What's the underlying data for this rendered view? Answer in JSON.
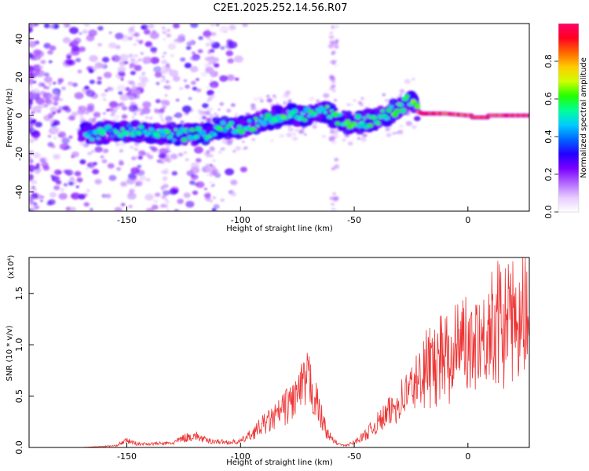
{
  "chart_data": [
    {
      "type": "heatmap",
      "title": "C2E1.2025.252.14.56.R07",
      "xlabel": "Height of straight line (km)",
      "ylabel": "Frequency (Hz)",
      "xlim": [
        -193,
        27
      ],
      "ylim": [
        -50,
        48
      ],
      "xticks": [
        -150,
        -100,
        -50,
        0
      ],
      "yticks": [
        -40,
        -20,
        0,
        20,
        40
      ],
      "colorbar": {
        "label": "Normalized spectral amplitude",
        "range": [
          0,
          1
        ],
        "ticks": [
          "0.0",
          "0.2",
          "0.4",
          "0.6",
          "0.8"
        ],
        "colors": [
          "#ffffff",
          "#e6ccff",
          "#b266ff",
          "#7a00ff",
          "#2200ff",
          "#0066ff",
          "#00ccff",
          "#00ff99",
          "#22ff00",
          "#ccff00",
          "#ffcc00",
          "#ff6600",
          "#ff0022",
          "#ff0066"
        ]
      },
      "ridge": {
        "x": [
          -170,
          -160,
          -150,
          -140,
          -130,
          -120,
          -115,
          -110,
          -100,
          -90,
          -80,
          -70,
          -62,
          -58,
          -55,
          -50,
          -40,
          -30,
          -25,
          -22,
          -20,
          -10,
          0,
          10,
          20,
          27
        ],
        "y": [
          -10,
          -9,
          -8,
          -9,
          -10,
          -10,
          -10,
          -7,
          -6,
          -3,
          1,
          0,
          2,
          -2,
          -3,
          -4,
          -2,
          4,
          9,
          2,
          1,
          1,
          0,
          0,
          0,
          0
        ]
      }
    },
    {
      "type": "line",
      "xlabel": "Height of straight line (km)",
      "ylabel": "SNR (10 * v/v)",
      "y_multiplier": "(x10⁴)",
      "xlim": [
        -193,
        27
      ],
      "ylim": [
        0,
        1.85
      ],
      "xticks": [
        -150,
        -100,
        -50,
        0
      ],
      "yticks": [
        "0.0",
        "0.5",
        "1.0",
        "1.5"
      ],
      "ytick_values": [
        0,
        0.5,
        1.0,
        1.5
      ],
      "color": "#ee3333",
      "envelope": {
        "x": [
          -193,
          -170,
          -155,
          -150,
          -145,
          -130,
          -125,
          -120,
          -115,
          -105,
          -100,
          -95,
          -90,
          -85,
          -80,
          -75,
          -72,
          -70,
          -68,
          -65,
          -62,
          -60,
          -57,
          -54,
          -50,
          -45,
          -40,
          -35,
          -30,
          -25,
          -22,
          -20,
          -15,
          -10,
          -5,
          0,
          5,
          10,
          15,
          20,
          25,
          27
        ],
        "y": [
          0.0,
          0.0,
          0.02,
          0.08,
          0.04,
          0.05,
          0.11,
          0.14,
          0.08,
          0.06,
          0.07,
          0.16,
          0.27,
          0.35,
          0.48,
          0.62,
          0.72,
          0.8,
          0.65,
          0.4,
          0.18,
          0.1,
          0.04,
          0.02,
          0.06,
          0.15,
          0.28,
          0.4,
          0.55,
          0.7,
          0.8,
          0.9,
          1.0,
          1.12,
          1.22,
          1.25,
          1.33,
          1.4,
          1.48,
          1.52,
          1.58,
          1.65
        ]
      }
    }
  ]
}
